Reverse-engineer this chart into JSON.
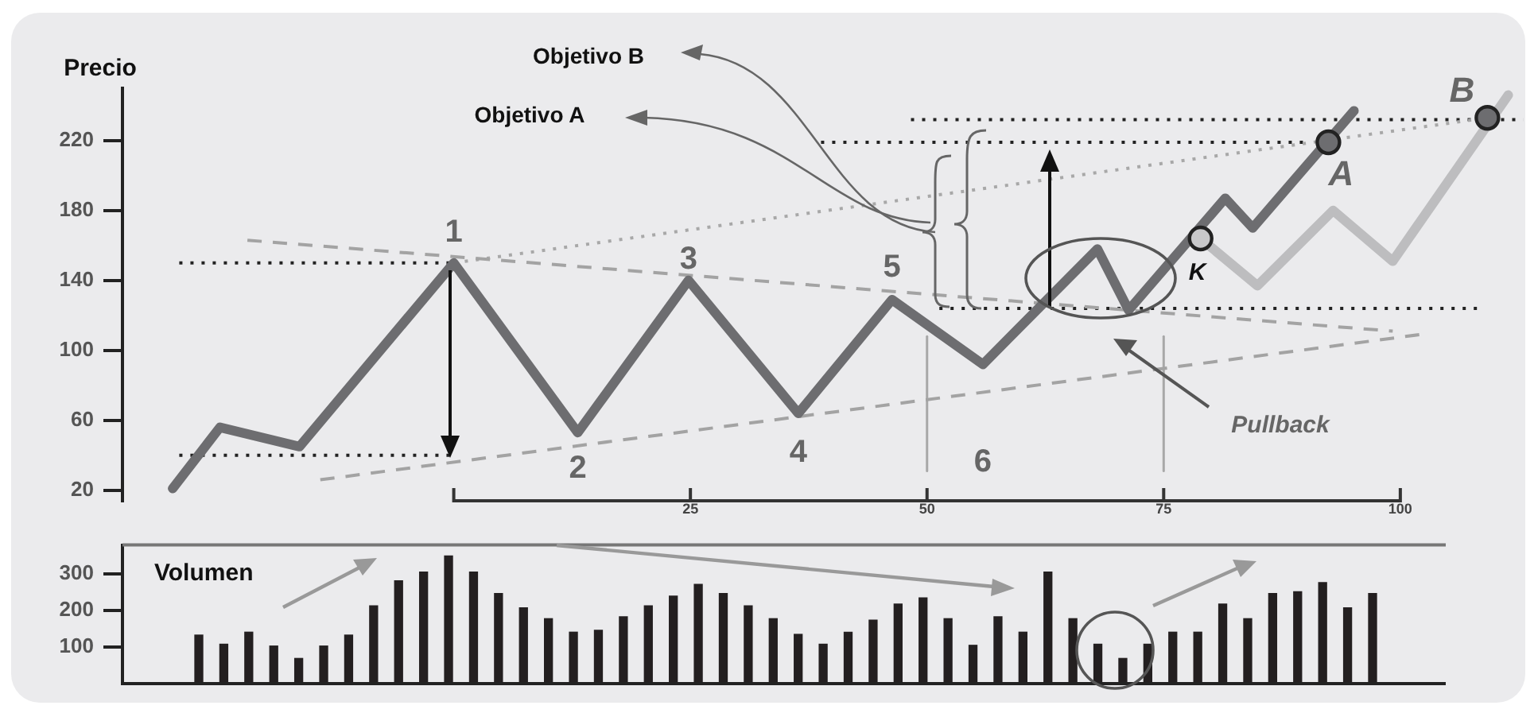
{
  "chart_data": [
    {
      "type": "line",
      "ylabel": "Precio",
      "xlim": [
        -35,
        113
      ],
      "xticks": [
        {
          "value": 0,
          "label": null
        },
        25,
        50,
        75,
        100
      ],
      "ylim": [
        14,
        250
      ],
      "yticks": [
        20,
        60,
        100,
        140,
        180,
        220
      ],
      "grid": false,
      "legend": false,
      "series": [
        {
          "type": "line",
          "color": "#6d6d70",
          "x": [
            -29.7,
            -24.7,
            -16.3,
            0,
            13.1,
            24.8,
            36.4,
            46.3,
            55.9,
            68.0,
            71.3,
            81.5,
            84.4,
            95.1
          ],
          "values": [
            21,
            56,
            45,
            150,
            53,
            140,
            64,
            129,
            92,
            158,
            123,
            187,
            170,
            237
          ]
        },
        {
          "type": "line",
          "color": "#bdbdbf",
          "x": [
            78.9,
            84.9,
            92.9,
            99.2,
            111.4
          ],
          "values": [
            164,
            137,
            180,
            151,
            246
          ]
        },
        {
          "type": "line",
          "color": "#a3a3a3",
          "line_style": "dashed",
          "x": [
            -21.8,
            99.2
          ],
          "values": [
            163,
            111
          ]
        },
        {
          "type": "line",
          "color": "#a3a3a3",
          "line_style": "dashed",
          "x": [
            -14.1,
            102
          ],
          "values": [
            26,
            109
          ]
        },
        {
          "type": "line",
          "color": "#a8a8a8",
          "line_style": "dotted",
          "x": [
            0,
            109.2
          ],
          "values": [
            150,
            233
          ]
        },
        {
          "type": "line",
          "color": "#222222",
          "line_style": "dotted",
          "x": [
            -29,
            0
          ],
          "values": [
            150,
            150
          ]
        },
        {
          "type": "line",
          "color": "#222222",
          "line_style": "dotted",
          "x": [
            -29,
            0
          ],
          "values": [
            40,
            40
          ]
        },
        {
          "type": "line",
          "color": "#222222",
          "line_style": "dotted",
          "x": [
            51.3,
            108.4
          ],
          "values": [
            124,
            124
          ]
        },
        {
          "type": "line",
          "color": "#222222",
          "line_style": "dotted",
          "x": [
            38.8,
            89.9
          ],
          "values": [
            219,
            219
          ]
        },
        {
          "type": "line",
          "color": "#222222",
          "line_style": "dotted",
          "x": [
            48.3,
            113
          ],
          "values": [
            232,
            232
          ]
        },
        {
          "type": "line",
          "color": "#a8a8a8",
          "x": [
            50,
            50
          ],
          "values": [
            31,
            108
          ]
        },
        {
          "type": "line",
          "color": "#a8a8a8",
          "x": [
            75,
            75
          ],
          "values": [
            31,
            108
          ]
        },
        {
          "type": "scatter",
          "marker": "circle",
          "x": [
            78.9,
            92.4,
            109.2
          ],
          "values": [
            164,
            219,
            233
          ],
          "colors": [
            "#c8c8ca",
            "#6d6d70",
            "#6d6d70"
          ]
        }
      ],
      "annotations": [
        {
          "text": "1",
          "x": 0,
          "y": 150
        },
        {
          "text": "2",
          "x": 13.1,
          "y": 53
        },
        {
          "text": "3",
          "x": 24.8,
          "y": 140
        },
        {
          "text": "4",
          "x": 36.4,
          "y": 64
        },
        {
          "text": "5",
          "x": 46.3,
          "y": 129
        },
        {
          "text": "6",
          "x": 55.9,
          "y": 92
        },
        {
          "text": "K",
          "x": 78.9,
          "y": 164
        },
        {
          "text": "A",
          "x": 92.4,
          "y": 219
        },
        {
          "text": "B",
          "x": 109.2,
          "y": 233
        },
        "Pullback",
        "Objetivo A",
        "Objetivo B"
      ]
    },
    {
      "type": "bar",
      "ylabel": "Volumen",
      "color": "#231f20",
      "ylim": [
        0,
        380
      ],
      "yticks": [
        100,
        200,
        300
      ],
      "tick_labels": "y",
      "grid": false,
      "legend": false,
      "categories": [
        null,
        null,
        null,
        null,
        null,
        null,
        null,
        null,
        null,
        null,
        null,
        null,
        null,
        null,
        null,
        null,
        null,
        null,
        null,
        null,
        null,
        null,
        null,
        null,
        null,
        null,
        null,
        null,
        null,
        null,
        null,
        null,
        null,
        null,
        null,
        null,
        null,
        null,
        null,
        null,
        null,
        null,
        null,
        null,
        null,
        null,
        null,
        null
      ],
      "values": [
        133,
        108,
        141,
        103,
        69,
        103,
        133,
        213,
        282,
        306,
        350,
        306,
        247,
        208,
        178,
        141,
        146,
        183,
        213,
        240,
        272,
        247,
        213,
        178,
        135,
        108,
        141,
        174,
        218,
        235,
        178,
        105,
        183,
        141,
        306,
        178,
        108,
        69,
        108,
        141,
        141,
        218,
        178,
        247,
        252,
        277,
        208,
        247
      ]
    }
  ]
}
